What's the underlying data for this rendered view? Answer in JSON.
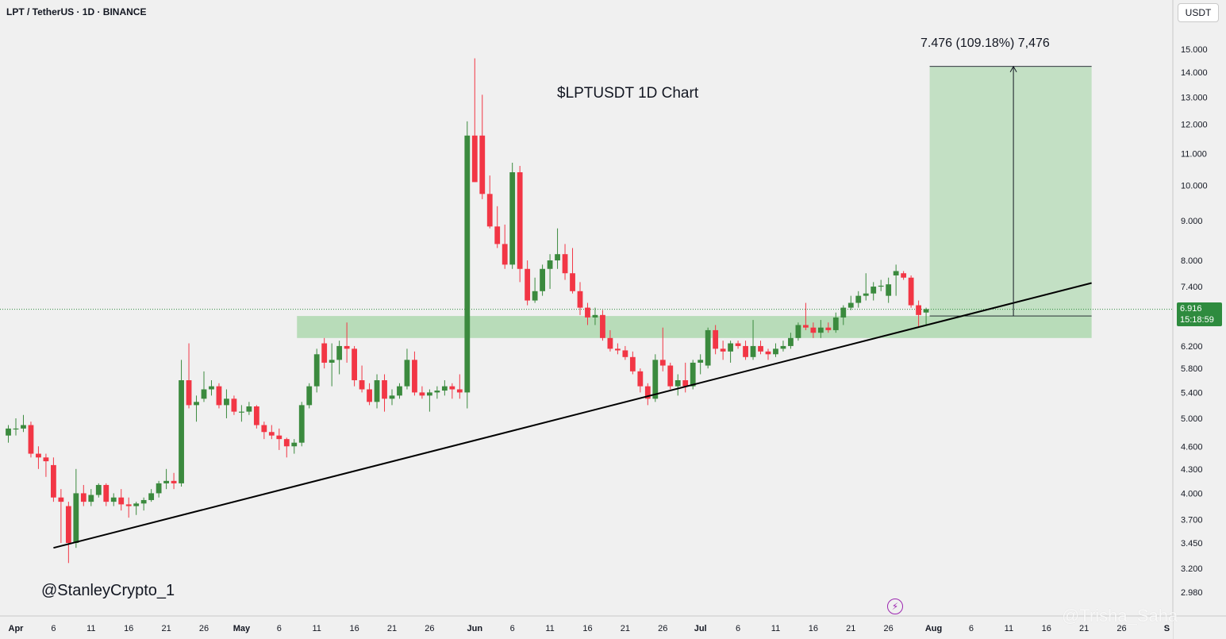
{
  "header": {
    "symbol": "LPT / TetherUS · 1D · BINANCE",
    "currency": "USDT"
  },
  "last_price": {
    "value": "6.916",
    "countdown": "15:18:59"
  },
  "annotations": {
    "title": "$LPTUSDT 1D Chart",
    "measure": "7.476 (109.18%) 7,476",
    "author": "@StanleyCrypto_1",
    "corner_watermark": "@Trisha_Saha"
  },
  "icons": {
    "lightning": "lightning-icon"
  },
  "colors": {
    "up": "#3b8a3e",
    "down": "#f23645",
    "zone": "#a5d6a7",
    "trendline": "#000000",
    "price_tag": "#2e8b3e"
  },
  "chart_data": {
    "type": "candlestick",
    "title": "$LPTUSDT 1D Chart",
    "y_scale": "log",
    "ylim": [
      2.88,
      16.3
    ],
    "y_ticks": [
      "15.000",
      "14.000",
      "13.000",
      "12.000",
      "11.000",
      "10.000",
      "9.000",
      "8.000",
      "7.400",
      "6.916",
      "6.200",
      "5.800",
      "5.400",
      "5.000",
      "4.600",
      "4.300",
      "4.000",
      "3.700",
      "3.450",
      "3.200",
      "2.980"
    ],
    "x_ticks": [
      {
        "label": "Apr",
        "date": "Apr 1"
      },
      {
        "label": "6",
        "date": "Apr 6"
      },
      {
        "label": "11",
        "date": "Apr 11"
      },
      {
        "label": "16",
        "date": "Apr 16"
      },
      {
        "label": "21",
        "date": "Apr 21"
      },
      {
        "label": "26",
        "date": "Apr 26"
      },
      {
        "label": "May",
        "date": "May 1"
      },
      {
        "label": "6",
        "date": "May 6"
      },
      {
        "label": "11",
        "date": "May 11"
      },
      {
        "label": "16",
        "date": "May 16"
      },
      {
        "label": "21",
        "date": "May 21"
      },
      {
        "label": "26",
        "date": "May 26"
      },
      {
        "label": "Jun",
        "date": "Jun 1"
      },
      {
        "label": "6",
        "date": "Jun 6"
      },
      {
        "label": "11",
        "date": "Jun 11"
      },
      {
        "label": "16",
        "date": "Jun 16"
      },
      {
        "label": "21",
        "date": "Jun 21"
      },
      {
        "label": "26",
        "date": "Jun 26"
      },
      {
        "label": "Jul",
        "date": "Jul 1"
      },
      {
        "label": "6",
        "date": "Jul 6"
      },
      {
        "label": "11",
        "date": "Jul 11"
      },
      {
        "label": "16",
        "date": "Jul 16"
      },
      {
        "label": "21",
        "date": "Jul 21"
      },
      {
        "label": "26",
        "date": "Jul 26"
      },
      {
        "label": "Aug",
        "date": "Aug 1"
      },
      {
        "label": "6",
        "date": "Aug 6"
      },
      {
        "label": "11",
        "date": "Aug 11"
      },
      {
        "label": "16",
        "date": "Aug 16"
      },
      {
        "label": "21",
        "date": "Aug 21"
      },
      {
        "label": "26",
        "date": "Aug 26"
      },
      {
        "label": "S",
        "date": "Sep 1"
      }
    ],
    "candles": [
      {
        "date": "Mar 31",
        "o": 4.75,
        "h": 4.9,
        "l": 4.65,
        "c": 4.85
      },
      {
        "date": "Apr 1",
        "o": 4.85,
        "h": 5.0,
        "l": 4.75,
        "c": 4.85
      },
      {
        "date": "Apr 2",
        "o": 4.85,
        "h": 5.05,
        "l": 4.8,
        "c": 4.9
      },
      {
        "date": "Apr 3",
        "o": 4.9,
        "h": 4.95,
        "l": 4.45,
        "c": 4.5
      },
      {
        "date": "Apr 4",
        "o": 4.5,
        "h": 4.6,
        "l": 4.3,
        "c": 4.45
      },
      {
        "date": "Apr 5",
        "o": 4.45,
        "h": 4.5,
        "l": 4.2,
        "c": 4.4
      },
      {
        "date": "Apr 6",
        "o": 4.35,
        "h": 4.45,
        "l": 3.9,
        "c": 3.95
      },
      {
        "date": "Apr 7",
        "o": 3.95,
        "h": 4.05,
        "l": 3.45,
        "c": 3.9
      },
      {
        "date": "Apr 8",
        "o": 3.85,
        "h": 3.9,
        "l": 3.25,
        "c": 3.45
      },
      {
        "date": "Apr 9",
        "o": 3.45,
        "h": 4.3,
        "l": 3.4,
        "c": 4.0
      },
      {
        "date": "Apr 10",
        "o": 4.0,
        "h": 4.1,
        "l": 3.85,
        "c": 3.9
      },
      {
        "date": "Apr 11",
        "o": 3.9,
        "h": 4.05,
        "l": 3.85,
        "c": 3.98
      },
      {
        "date": "Apr 12",
        "o": 3.98,
        "h": 4.12,
        "l": 3.95,
        "c": 4.1
      },
      {
        "date": "Apr 13",
        "o": 4.1,
        "h": 4.12,
        "l": 3.85,
        "c": 3.9
      },
      {
        "date": "Apr 14",
        "o": 3.9,
        "h": 4.0,
        "l": 3.85,
        "c": 3.95
      },
      {
        "date": "Apr 15",
        "o": 3.95,
        "h": 4.05,
        "l": 3.8,
        "c": 3.87
      },
      {
        "date": "Apr 16",
        "o": 3.87,
        "h": 3.95,
        "l": 3.72,
        "c": 3.85
      },
      {
        "date": "Apr 17",
        "o": 3.85,
        "h": 3.9,
        "l": 3.75,
        "c": 3.88
      },
      {
        "date": "Apr 18",
        "o": 3.88,
        "h": 3.95,
        "l": 3.8,
        "c": 3.92
      },
      {
        "date": "Apr 19",
        "o": 3.92,
        "h": 4.05,
        "l": 3.9,
        "c": 4.0
      },
      {
        "date": "Apr 20",
        "o": 4.0,
        "h": 4.15,
        "l": 3.95,
        "c": 4.12
      },
      {
        "date": "Apr 21",
        "o": 4.12,
        "h": 4.3,
        "l": 4.05,
        "c": 4.15
      },
      {
        "date": "Apr 22",
        "o": 4.15,
        "h": 4.25,
        "l": 4.05,
        "c": 4.12
      },
      {
        "date": "Apr 23",
        "o": 4.12,
        "h": 5.95,
        "l": 4.08,
        "c": 5.6
      },
      {
        "date": "Apr 24",
        "o": 5.6,
        "h": 6.25,
        "l": 5.15,
        "c": 5.2
      },
      {
        "date": "Apr 25",
        "o": 5.2,
        "h": 5.35,
        "l": 4.95,
        "c": 5.25
      },
      {
        "date": "Apr 26",
        "o": 5.3,
        "h": 5.75,
        "l": 5.25,
        "c": 5.45
      },
      {
        "date": "Apr 27",
        "o": 5.45,
        "h": 5.6,
        "l": 5.35,
        "c": 5.5
      },
      {
        "date": "Apr 28",
        "o": 5.5,
        "h": 5.55,
        "l": 5.15,
        "c": 5.2
      },
      {
        "date": "Apr 29",
        "o": 5.2,
        "h": 5.45,
        "l": 5.0,
        "c": 5.3
      },
      {
        "date": "Apr 30",
        "o": 5.3,
        "h": 5.35,
        "l": 5.05,
        "c": 5.1
      },
      {
        "date": "May 1",
        "o": 5.1,
        "h": 5.2,
        "l": 4.95,
        "c": 5.1
      },
      {
        "date": "May 2",
        "o": 5.1,
        "h": 5.25,
        "l": 5.05,
        "c": 5.18
      },
      {
        "date": "May 3",
        "o": 5.18,
        "h": 5.2,
        "l": 4.85,
        "c": 4.9
      },
      {
        "date": "May 4",
        "o": 4.9,
        "h": 4.95,
        "l": 4.7,
        "c": 4.8
      },
      {
        "date": "May 5",
        "o": 4.8,
        "h": 4.9,
        "l": 4.7,
        "c": 4.75
      },
      {
        "date": "May 6",
        "o": 4.75,
        "h": 4.85,
        "l": 4.55,
        "c": 4.7
      },
      {
        "date": "May 7",
        "o": 4.7,
        "h": 4.72,
        "l": 4.45,
        "c": 4.6
      },
      {
        "date": "May 8",
        "o": 4.6,
        "h": 4.7,
        "l": 4.5,
        "c": 4.65
      },
      {
        "date": "May 9",
        "o": 4.65,
        "h": 5.25,
        "l": 4.6,
        "c": 5.2
      },
      {
        "date": "May 10",
        "o": 5.2,
        "h": 5.55,
        "l": 5.15,
        "c": 5.5
      },
      {
        "date": "May 11",
        "o": 5.5,
        "h": 6.15,
        "l": 5.4,
        "c": 6.05
      },
      {
        "date": "May 12",
        "o": 6.25,
        "h": 6.35,
        "l": 5.8,
        "c": 5.9
      },
      {
        "date": "May 13",
        "o": 5.9,
        "h": 6.25,
        "l": 5.5,
        "c": 5.95
      },
      {
        "date": "May 14",
        "o": 5.95,
        "h": 6.3,
        "l": 5.7,
        "c": 6.2
      },
      {
        "date": "May 15",
        "o": 6.2,
        "h": 6.65,
        "l": 5.9,
        "c": 6.15
      },
      {
        "date": "May 16",
        "o": 6.15,
        "h": 6.2,
        "l": 5.5,
        "c": 5.6
      },
      {
        "date": "May 17",
        "o": 5.6,
        "h": 5.85,
        "l": 5.4,
        "c": 5.45
      },
      {
        "date": "May 18",
        "o": 5.45,
        "h": 5.55,
        "l": 5.2,
        "c": 5.25
      },
      {
        "date": "May 19",
        "o": 5.25,
        "h": 5.7,
        "l": 5.15,
        "c": 5.6
      },
      {
        "date": "May 20",
        "o": 5.6,
        "h": 5.7,
        "l": 5.1,
        "c": 5.3
      },
      {
        "date": "May 21",
        "o": 5.3,
        "h": 5.45,
        "l": 5.2,
        "c": 5.35
      },
      {
        "date": "May 22",
        "o": 5.35,
        "h": 5.55,
        "l": 5.3,
        "c": 5.5
      },
      {
        "date": "May 23",
        "o": 5.5,
        "h": 6.15,
        "l": 5.45,
        "c": 5.95
      },
      {
        "date": "May 24",
        "o": 5.95,
        "h": 6.1,
        "l": 5.35,
        "c": 5.4
      },
      {
        "date": "May 25",
        "o": 5.4,
        "h": 5.5,
        "l": 5.3,
        "c": 5.35
      },
      {
        "date": "May 26",
        "o": 5.35,
        "h": 5.45,
        "l": 5.1,
        "c": 5.4
      },
      {
        "date": "May 27",
        "o": 5.4,
        "h": 5.5,
        "l": 5.3,
        "c": 5.43
      },
      {
        "date": "May 28",
        "o": 5.43,
        "h": 5.6,
        "l": 5.35,
        "c": 5.5
      },
      {
        "date": "May 29",
        "o": 5.5,
        "h": 5.55,
        "l": 5.3,
        "c": 5.45
      },
      {
        "date": "May 30",
        "o": 5.45,
        "h": 5.7,
        "l": 5.3,
        "c": 5.4
      },
      {
        "date": "May 31",
        "o": 5.4,
        "h": 12.1,
        "l": 5.15,
        "c": 11.6
      },
      {
        "date": "Jun 1",
        "o": 11.6,
        "h": 14.6,
        "l": 10.1,
        "c": 10.1
      },
      {
        "date": "Jun 2",
        "o": 11.6,
        "h": 13.1,
        "l": 9.6,
        "c": 9.75
      },
      {
        "date": "Jun 3",
        "o": 9.75,
        "h": 10.3,
        "l": 8.8,
        "c": 8.85
      },
      {
        "date": "Jun 4",
        "o": 8.85,
        "h": 9.4,
        "l": 8.3,
        "c": 8.4
      },
      {
        "date": "Jun 5",
        "o": 8.4,
        "h": 8.9,
        "l": 7.8,
        "c": 7.9
      },
      {
        "date": "Jun 6",
        "o": 7.9,
        "h": 10.7,
        "l": 7.8,
        "c": 10.4
      },
      {
        "date": "Jun 7",
        "o": 10.4,
        "h": 10.6,
        "l": 7.5,
        "c": 7.8
      },
      {
        "date": "Jun 8",
        "o": 7.8,
        "h": 8.0,
        "l": 7.0,
        "c": 7.1
      },
      {
        "date": "Jun 9",
        "o": 7.1,
        "h": 7.6,
        "l": 7.05,
        "c": 7.3
      },
      {
        "date": "Jun 10",
        "o": 7.3,
        "h": 7.9,
        "l": 7.2,
        "c": 7.8
      },
      {
        "date": "Jun 11",
        "o": 7.8,
        "h": 8.15,
        "l": 7.35,
        "c": 8.0
      },
      {
        "date": "Jun 12",
        "o": 8.0,
        "h": 8.8,
        "l": 7.8,
        "c": 8.15
      },
      {
        "date": "Jun 13",
        "o": 8.15,
        "h": 8.4,
        "l": 7.55,
        "c": 7.7
      },
      {
        "date": "Jun 14",
        "o": 7.7,
        "h": 8.3,
        "l": 7.25,
        "c": 7.3
      },
      {
        "date": "Jun 15",
        "o": 7.3,
        "h": 7.5,
        "l": 6.8,
        "c": 6.95
      },
      {
        "date": "Jun 16",
        "o": 6.95,
        "h": 7.05,
        "l": 6.6,
        "c": 6.75
      },
      {
        "date": "Jun 17",
        "o": 6.75,
        "h": 6.95,
        "l": 6.6,
        "c": 6.8
      },
      {
        "date": "Jun 18",
        "o": 6.8,
        "h": 6.9,
        "l": 6.3,
        "c": 6.35
      },
      {
        "date": "Jun 19",
        "o": 6.35,
        "h": 6.5,
        "l": 6.1,
        "c": 6.15
      },
      {
        "date": "Jun 20",
        "o": 6.15,
        "h": 6.25,
        "l": 6.05,
        "c": 6.12
      },
      {
        "date": "Jun 21",
        "o": 6.12,
        "h": 6.2,
        "l": 5.95,
        "c": 6.0
      },
      {
        "date": "Jun 22",
        "o": 6.0,
        "h": 6.1,
        "l": 5.7,
        "c": 5.75
      },
      {
        "date": "Jun 23",
        "o": 5.75,
        "h": 5.8,
        "l": 5.4,
        "c": 5.5
      },
      {
        "date": "Jun 24",
        "o": 5.5,
        "h": 5.55,
        "l": 5.2,
        "c": 5.3
      },
      {
        "date": "Jun 25",
        "o": 5.3,
        "h": 6.05,
        "l": 5.25,
        "c": 5.95
      },
      {
        "date": "Jun 26",
        "o": 5.95,
        "h": 6.55,
        "l": 5.75,
        "c": 5.85
      },
      {
        "date": "Jun 27",
        "o": 5.85,
        "h": 5.9,
        "l": 5.45,
        "c": 5.5
      },
      {
        "date": "Jun 28",
        "o": 5.5,
        "h": 5.7,
        "l": 5.35,
        "c": 5.6
      },
      {
        "date": "Jun 29",
        "o": 5.6,
        "h": 5.9,
        "l": 5.4,
        "c": 5.5
      },
      {
        "date": "Jun 30",
        "o": 5.5,
        "h": 5.95,
        "l": 5.45,
        "c": 5.9
      },
      {
        "date": "Jul 1",
        "o": 5.9,
        "h": 6.05,
        "l": 5.7,
        "c": 5.95
      },
      {
        "date": "Jul 2",
        "o": 5.85,
        "h": 6.55,
        "l": 5.8,
        "c": 6.5
      },
      {
        "date": "Jul 3",
        "o": 6.5,
        "h": 6.6,
        "l": 6.05,
        "c": 6.15
      },
      {
        "date": "Jul 4",
        "o": 6.15,
        "h": 6.3,
        "l": 5.95,
        "c": 6.1
      },
      {
        "date": "Jul 5",
        "o": 6.1,
        "h": 6.3,
        "l": 5.9,
        "c": 6.25
      },
      {
        "date": "Jul 6",
        "o": 6.25,
        "h": 6.3,
        "l": 6.15,
        "c": 6.2
      },
      {
        "date": "Jul 7",
        "o": 6.2,
        "h": 6.3,
        "l": 5.95,
        "c": 6.0
      },
      {
        "date": "Jul 8",
        "o": 6.0,
        "h": 6.7,
        "l": 5.95,
        "c": 6.2
      },
      {
        "date": "Jul 9",
        "o": 6.2,
        "h": 6.3,
        "l": 6.05,
        "c": 6.1
      },
      {
        "date": "Jul 10",
        "o": 6.1,
        "h": 6.15,
        "l": 5.95,
        "c": 6.05
      },
      {
        "date": "Jul 11",
        "o": 6.05,
        "h": 6.25,
        "l": 6.0,
        "c": 6.15
      },
      {
        "date": "Jul 12",
        "o": 6.15,
        "h": 6.3,
        "l": 6.1,
        "c": 6.2
      },
      {
        "date": "Jul 13",
        "o": 6.2,
        "h": 6.45,
        "l": 6.15,
        "c": 6.35
      },
      {
        "date": "Jul 14",
        "o": 6.35,
        "h": 6.65,
        "l": 6.3,
        "c": 6.6
      },
      {
        "date": "Jul 15",
        "o": 6.6,
        "h": 7.05,
        "l": 6.5,
        "c": 6.55
      },
      {
        "date": "Jul 16",
        "o": 6.55,
        "h": 6.65,
        "l": 6.35,
        "c": 6.45
      },
      {
        "date": "Jul 17",
        "o": 6.45,
        "h": 6.7,
        "l": 6.35,
        "c": 6.55
      },
      {
        "date": "Jul 18",
        "o": 6.55,
        "h": 6.65,
        "l": 6.45,
        "c": 6.5
      },
      {
        "date": "Jul 19",
        "o": 6.5,
        "h": 6.85,
        "l": 6.45,
        "c": 6.75
      },
      {
        "date": "Jul 20",
        "o": 6.75,
        "h": 7.0,
        "l": 6.6,
        "c": 6.95
      },
      {
        "date": "Jul 21",
        "o": 6.95,
        "h": 7.2,
        "l": 6.9,
        "c": 7.05
      },
      {
        "date": "Jul 22",
        "o": 7.05,
        "h": 7.3,
        "l": 6.95,
        "c": 7.2
      },
      {
        "date": "Jul 23",
        "o": 7.2,
        "h": 7.7,
        "l": 7.1,
        "c": 7.25
      },
      {
        "date": "Jul 24",
        "o": 7.25,
        "h": 7.5,
        "l": 7.1,
        "c": 7.4
      },
      {
        "date": "Jul 25",
        "o": 7.4,
        "h": 7.55,
        "l": 7.3,
        "c": 7.42
      },
      {
        "date": "Jul 26",
        "o": 7.2,
        "h": 7.6,
        "l": 7.05,
        "c": 7.45
      },
      {
        "date": "Jul 27",
        "o": 7.65,
        "h": 7.9,
        "l": 7.2,
        "c": 7.75
      },
      {
        "date": "Jul 28",
        "o": 7.7,
        "h": 7.75,
        "l": 7.55,
        "c": 7.6
      },
      {
        "date": "Jul 29",
        "o": 7.6,
        "h": 7.65,
        "l": 6.95,
        "c": 7.0
      },
      {
        "date": "Jul 30",
        "o": 7.0,
        "h": 7.1,
        "l": 6.55,
        "c": 6.8
      },
      {
        "date": "Jul 31",
        "o": 6.85,
        "h": 6.95,
        "l": 6.6,
        "c": 6.92
      }
    ],
    "demand_zone": {
      "low": 6.35,
      "high": 6.78,
      "from": "May 9",
      "to": "Aug 22"
    },
    "trendline": {
      "start": {
        "date": "Apr 6",
        "price": 3.4
      },
      "end": {
        "date": "Aug 22",
        "price": 7.48
      }
    },
    "target_box": {
      "from": "Aug 1",
      "to": "Aug 22",
      "low": 6.78,
      "high": 14.25,
      "label": "7.476 (109.18%) 7,476"
    },
    "last_price": 6.916
  }
}
